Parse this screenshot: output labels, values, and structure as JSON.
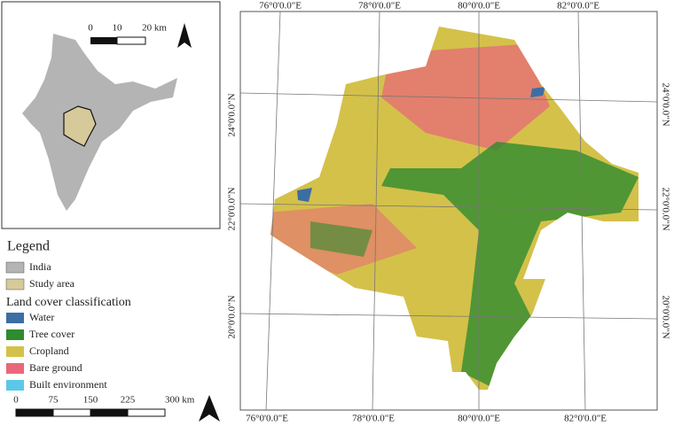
{
  "inset": {
    "scale_labels": [
      "0",
      "10",
      "20 km"
    ]
  },
  "legend": {
    "title": "Legend",
    "items": [
      {
        "label": "India",
        "color": "#b4b4b4"
      },
      {
        "label": "Study area",
        "color": "#d6c99a"
      }
    ],
    "section_title": "Land cover classification",
    "classes": [
      {
        "label": "Water",
        "color": "#3b6ea5"
      },
      {
        "label": "Tree cover",
        "color": "#2e8b2e"
      },
      {
        "label": "Cropland",
        "color": "#d4c14a"
      },
      {
        "label": "Bare ground",
        "color": "#e8687a"
      },
      {
        "label": "Built environment",
        "color": "#5bc8e8"
      }
    ]
  },
  "scale_bar": {
    "labels": [
      "0",
      "75",
      "150",
      "225",
      "300 km"
    ]
  },
  "map": {
    "top_labels": [
      "76°0'0.0\"E",
      "78°0'0.0\"E",
      "80°0'0.0\"E",
      "82°0'0.0\"E"
    ],
    "bottom_labels": [
      "76°0'0.0\"E",
      "78°0'0.0\"E",
      "80°0'0.0\"E",
      "82°0'0.0\"E"
    ],
    "left_labels": [
      "24°0'0.0\"N",
      "22°0'0.0\"N",
      "20°0'0.0\"N"
    ],
    "right_labels": [
      "24°0'0.0\"N",
      "22°0'0.0\"N",
      "20°0'0.0\"N"
    ]
  }
}
